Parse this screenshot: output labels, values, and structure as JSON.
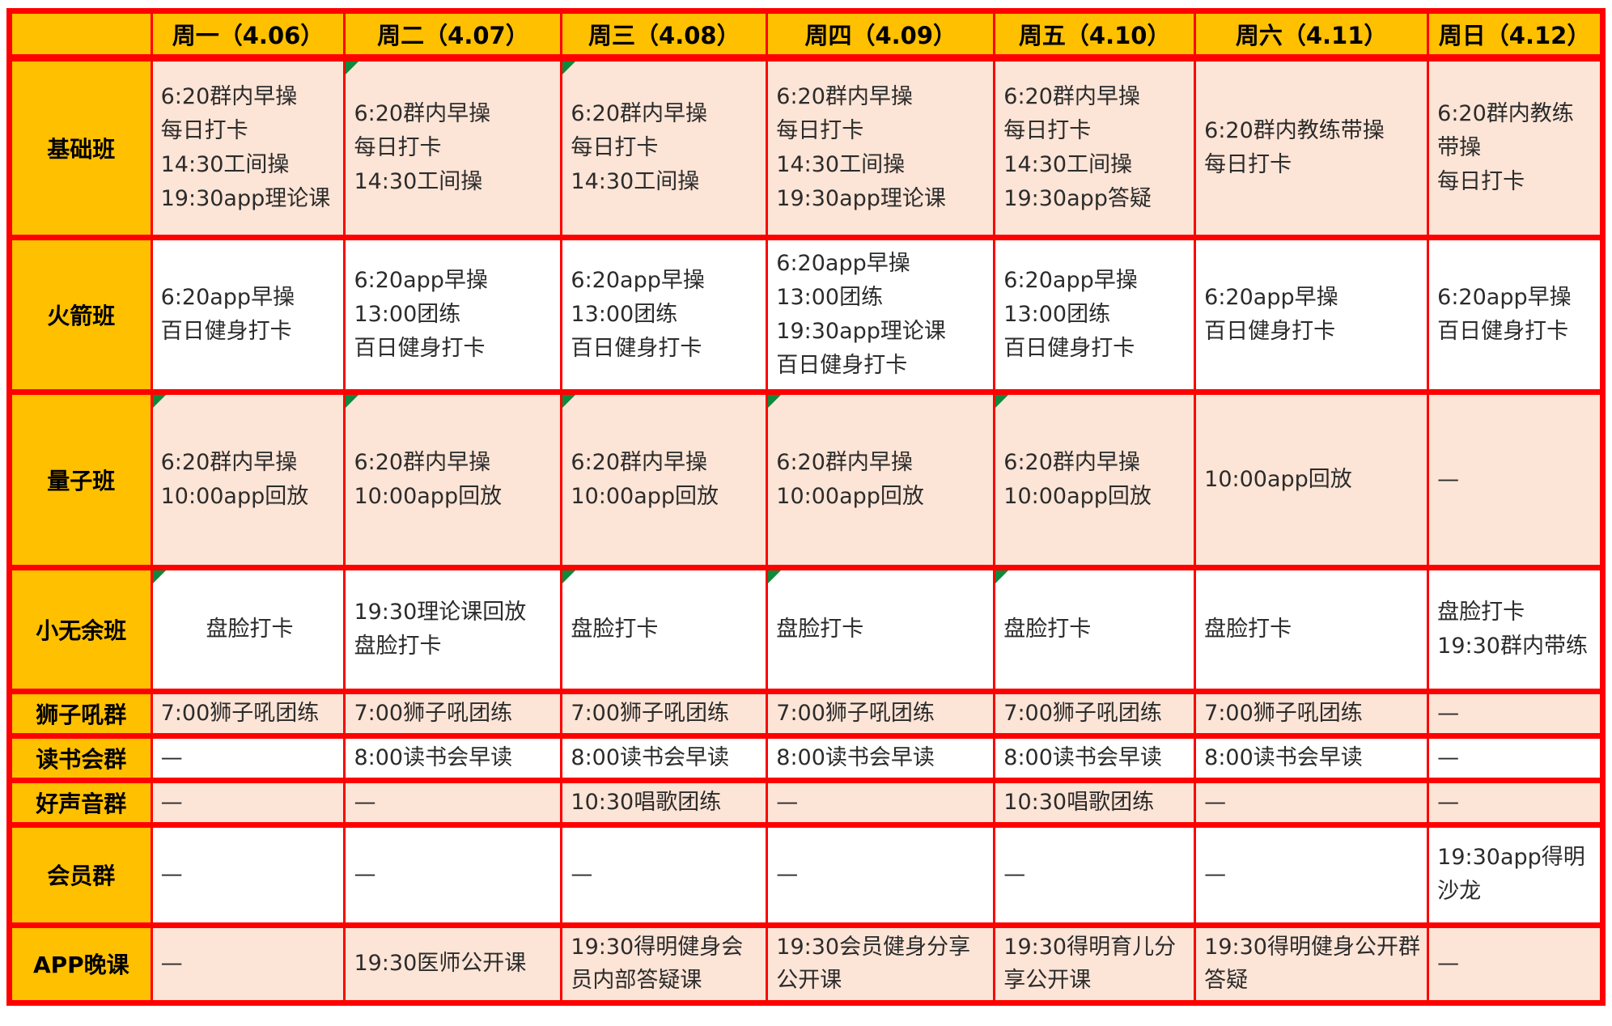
{
  "colors": {
    "gold": "#FFC000",
    "pink": "#FCE4D6",
    "white": "#FFFFFF",
    "grid_red": "#FF0000",
    "marker_green": "#0E8A3C"
  },
  "table": {
    "corner": "",
    "days": [
      "周一（4.06）",
      "周二（4.07）",
      "周三（4.08）",
      "周四（4.09）",
      "周五（4.10）",
      "周六（4.11）",
      "周日（4.12）"
    ],
    "rows": [
      {
        "label": "基础班",
        "tone": "pink",
        "cells": [
          {
            "lines": [
              "6:20群内早操",
              "每日打卡",
              "14:30工间操",
              "19:30app理论课"
            ]
          },
          {
            "lines": [
              "6:20群内早操",
              "每日打卡",
              "14:30工间操"
            ],
            "marker": true
          },
          {
            "lines": [
              "6:20群内早操",
              "每日打卡",
              "14:30工间操"
            ],
            "marker": true
          },
          {
            "lines": [
              "6:20群内早操",
              "每日打卡",
              "14:30工间操",
              "19:30app理论课"
            ]
          },
          {
            "lines": [
              "6:20群内早操",
              "每日打卡",
              "14:30工间操",
              "19:30app答疑"
            ]
          },
          {
            "lines": [
              "6:20群内教练带操",
              "每日打卡"
            ]
          },
          {
            "lines": [
              "6:20群内教练带操",
              "每日打卡"
            ]
          }
        ]
      },
      {
        "label": "火箭班",
        "tone": "white",
        "cells": [
          {
            "lines": [
              "6:20app早操",
              "百日健身打卡"
            ]
          },
          {
            "lines": [
              "6:20app早操",
              "13:00团练",
              "百日健身打卡"
            ]
          },
          {
            "lines": [
              "6:20app早操",
              "13:00团练",
              "百日健身打卡"
            ]
          },
          {
            "lines": [
              "6:20app早操",
              "13:00团练",
              "19:30app理论课",
              "百日健身打卡"
            ]
          },
          {
            "lines": [
              "6:20app早操",
              "13:00团练",
              "百日健身打卡"
            ]
          },
          {
            "lines": [
              "6:20app早操",
              "百日健身打卡"
            ]
          },
          {
            "lines": [
              "6:20app早操",
              "百日健身打卡"
            ]
          }
        ]
      },
      {
        "label": "量子班",
        "tone": "pink",
        "cells": [
          {
            "lines": [
              "6:20群内早操",
              "10:00app回放"
            ],
            "marker": true
          },
          {
            "lines": [
              "6:20群内早操",
              "10:00app回放"
            ],
            "marker": true
          },
          {
            "lines": [
              "6:20群内早操",
              "10:00app回放"
            ],
            "marker": true
          },
          {
            "lines": [
              "6:20群内早操",
              "10:00app回放"
            ],
            "marker": true
          },
          {
            "lines": [
              "6:20群内早操",
              "10:00app回放"
            ],
            "marker": true
          },
          {
            "lines": [
              "10:00app回放"
            ]
          },
          {
            "lines": [
              "—"
            ]
          }
        ]
      },
      {
        "label": "小无余班",
        "tone": "white",
        "cells": [
          {
            "lines": [
              "盘脸打卡"
            ],
            "marker": true,
            "align": "center"
          },
          {
            "lines": [
              "19:30理论课回放",
              "盘脸打卡"
            ]
          },
          {
            "lines": [
              "盘脸打卡"
            ],
            "marker": true
          },
          {
            "lines": [
              "盘脸打卡"
            ],
            "marker": true
          },
          {
            "lines": [
              "盘脸打卡"
            ],
            "marker": true
          },
          {
            "lines": [
              "盘脸打卡"
            ]
          },
          {
            "lines": [
              "盘脸打卡",
              "19:30群内带练"
            ]
          }
        ]
      },
      {
        "label": "狮子吼群",
        "tone": "pink",
        "cells": [
          {
            "lines": [
              "7:00狮子吼团练"
            ]
          },
          {
            "lines": [
              "7:00狮子吼团练"
            ]
          },
          {
            "lines": [
              "7:00狮子吼团练"
            ]
          },
          {
            "lines": [
              "7:00狮子吼团练"
            ]
          },
          {
            "lines": [
              "7:00狮子吼团练"
            ]
          },
          {
            "lines": [
              "7:00狮子吼团练"
            ]
          },
          {
            "lines": [
              "—"
            ]
          }
        ]
      },
      {
        "label": "读书会群",
        "tone": "white",
        "cells": [
          {
            "lines": [
              "—"
            ]
          },
          {
            "lines": [
              "8:00读书会早读"
            ]
          },
          {
            "lines": [
              "8:00读书会早读"
            ]
          },
          {
            "lines": [
              "8:00读书会早读"
            ]
          },
          {
            "lines": [
              "8:00读书会早读"
            ]
          },
          {
            "lines": [
              "8:00读书会早读"
            ]
          },
          {
            "lines": [
              "—"
            ]
          }
        ]
      },
      {
        "label": "好声音群",
        "tone": "pink",
        "cells": [
          {
            "lines": [
              "—"
            ]
          },
          {
            "lines": [
              "—"
            ]
          },
          {
            "lines": [
              "10:30唱歌团练"
            ]
          },
          {
            "lines": [
              "—"
            ]
          },
          {
            "lines": [
              "10:30唱歌团练"
            ]
          },
          {
            "lines": [
              "—"
            ]
          },
          {
            "lines": [
              "—"
            ]
          }
        ]
      },
      {
        "label": "会员群",
        "tone": "white",
        "cells": [
          {
            "lines": [
              "—"
            ]
          },
          {
            "lines": [
              "—"
            ]
          },
          {
            "lines": [
              "—"
            ]
          },
          {
            "lines": [
              "—"
            ]
          },
          {
            "lines": [
              "—"
            ]
          },
          {
            "lines": [
              "—"
            ]
          },
          {
            "lines": [
              "19:30app得明沙龙"
            ]
          }
        ]
      },
      {
        "label": "APP晚课",
        "tone": "pink",
        "cells": [
          {
            "lines": [
              "—"
            ]
          },
          {
            "lines": [
              "19:30医师公开课"
            ]
          },
          {
            "lines": [
              "19:30得明健身会员内部答疑课"
            ]
          },
          {
            "lines": [
              "19:30会员健身分享公开课"
            ]
          },
          {
            "lines": [
              "19:30得明育儿分享公开课"
            ]
          },
          {
            "lines": [
              "19:30得明健身公开群答疑"
            ]
          },
          {
            "lines": [
              "—"
            ]
          }
        ]
      }
    ]
  }
}
